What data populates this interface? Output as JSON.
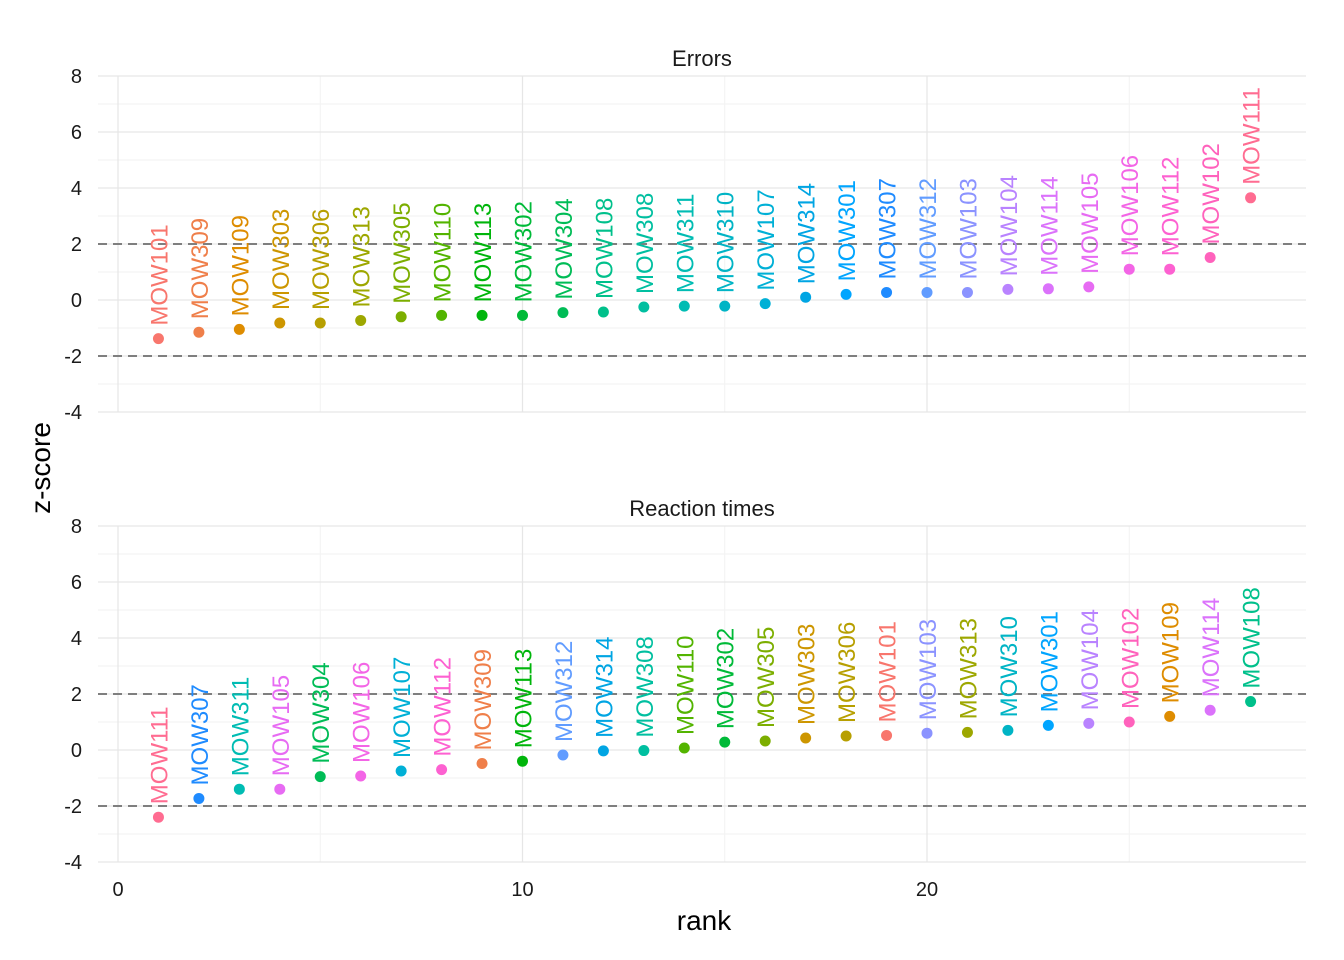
{
  "chart_data": {
    "type": "scatter",
    "xlabel": "rank",
    "ylabel": "z-score",
    "xlim": [
      0,
      29
    ],
    "ylim": [
      -4,
      8
    ],
    "x_ticks": [
      "0",
      "10",
      "20"
    ],
    "x_tick_values": [
      0,
      10,
      20
    ],
    "y_ticks": [
      "-4",
      "-2",
      "0",
      "2",
      "4",
      "6",
      "8"
    ],
    "y_tick_values": [
      -4,
      -2,
      0,
      2,
      4,
      6,
      8
    ],
    "reference_lines": [
      -2,
      2
    ],
    "grid": true,
    "colors": {
      "MOW101": "#F8766D",
      "MOW309": "#EF7F4A",
      "MOW109": "#DE8C00",
      "MOW303": "#CD9600",
      "MOW306": "#B79F00",
      "MOW313": "#9DA700",
      "MOW305": "#7CAE00",
      "MOW110": "#53B400",
      "MOW113": "#00B50B",
      "MOW302": "#00BA38",
      "MOW304": "#00BC56",
      "MOW108": "#00C08B",
      "MOW308": "#00BFA0",
      "MOW311": "#00BCB3",
      "MOW310": "#00B4C5",
      "MOW107": "#00B0D6",
      "MOW314": "#00A5E3",
      "MOW301": "#00A5FF",
      "MOW307": "#1F8BFF",
      "MOW312": "#619CFF",
      "MOW103": "#8B93FF",
      "MOW104": "#B983FF",
      "MOW114": "#DB72FB",
      "MOW105": "#E76BF3",
      "MOW106": "#F365E6",
      "MOW112": "#FD61D1",
      "MOW102": "#FF62BC",
      "MOW111": "#FF6C91"
    },
    "panels": [
      {
        "title": "Errors",
        "points": [
          {
            "rank": 1,
            "label": "MOW101",
            "z": -1.38
          },
          {
            "rank": 2,
            "label": "MOW309",
            "z": -1.15
          },
          {
            "rank": 3,
            "label": "MOW109",
            "z": -1.05
          },
          {
            "rank": 4,
            "label": "MOW303",
            "z": -0.82
          },
          {
            "rank": 5,
            "label": "MOW306",
            "z": -0.82
          },
          {
            "rank": 6,
            "label": "MOW313",
            "z": -0.73
          },
          {
            "rank": 7,
            "label": "MOW305",
            "z": -0.6
          },
          {
            "rank": 8,
            "label": "MOW110",
            "z": -0.55
          },
          {
            "rank": 9,
            "label": "MOW113",
            "z": -0.55
          },
          {
            "rank": 10,
            "label": "MOW302",
            "z": -0.55
          },
          {
            "rank": 11,
            "label": "MOW304",
            "z": -0.45
          },
          {
            "rank": 12,
            "label": "MOW108",
            "z": -0.43
          },
          {
            "rank": 13,
            "label": "MOW308",
            "z": -0.25
          },
          {
            "rank": 14,
            "label": "MOW311",
            "z": -0.22
          },
          {
            "rank": 15,
            "label": "MOW310",
            "z": -0.22
          },
          {
            "rank": 16,
            "label": "MOW107",
            "z": -0.13
          },
          {
            "rank": 17,
            "label": "MOW314",
            "z": 0.1
          },
          {
            "rank": 18,
            "label": "MOW301",
            "z": 0.2
          },
          {
            "rank": 19,
            "label": "MOW307",
            "z": 0.27
          },
          {
            "rank": 20,
            "label": "MOW312",
            "z": 0.27
          },
          {
            "rank": 21,
            "label": "MOW103",
            "z": 0.27
          },
          {
            "rank": 22,
            "label": "MOW104",
            "z": 0.38
          },
          {
            "rank": 23,
            "label": "MOW114",
            "z": 0.4
          },
          {
            "rank": 24,
            "label": "MOW105",
            "z": 0.47
          },
          {
            "rank": 25,
            "label": "MOW106",
            "z": 1.1
          },
          {
            "rank": 26,
            "label": "MOW112",
            "z": 1.1
          },
          {
            "rank": 27,
            "label": "MOW102",
            "z": 1.52
          },
          {
            "rank": 28,
            "label": "MOW111",
            "z": 3.65
          }
        ]
      },
      {
        "title": "Reaction times",
        "points": [
          {
            "rank": 1,
            "label": "MOW111",
            "z": -2.4
          },
          {
            "rank": 2,
            "label": "MOW307",
            "z": -1.73
          },
          {
            "rank": 3,
            "label": "MOW311",
            "z": -1.4
          },
          {
            "rank": 4,
            "label": "MOW105",
            "z": -1.4
          },
          {
            "rank": 5,
            "label": "MOW304",
            "z": -0.95
          },
          {
            "rank": 6,
            "label": "MOW106",
            "z": -0.93
          },
          {
            "rank": 7,
            "label": "MOW107",
            "z": -0.75
          },
          {
            "rank": 8,
            "label": "MOW112",
            "z": -0.7
          },
          {
            "rank": 9,
            "label": "MOW309",
            "z": -0.48
          },
          {
            "rank": 10,
            "label": "MOW113",
            "z": -0.4
          },
          {
            "rank": 11,
            "label": "MOW312",
            "z": -0.18
          },
          {
            "rank": 12,
            "label": "MOW314",
            "z": -0.03
          },
          {
            "rank": 13,
            "label": "MOW308",
            "z": -0.02
          },
          {
            "rank": 14,
            "label": "MOW110",
            "z": 0.07
          },
          {
            "rank": 15,
            "label": "MOW302",
            "z": 0.28
          },
          {
            "rank": 16,
            "label": "MOW305",
            "z": 0.32
          },
          {
            "rank": 17,
            "label": "MOW303",
            "z": 0.43
          },
          {
            "rank": 18,
            "label": "MOW306",
            "z": 0.5
          },
          {
            "rank": 19,
            "label": "MOW101",
            "z": 0.52
          },
          {
            "rank": 20,
            "label": "MOW103",
            "z": 0.6
          },
          {
            "rank": 21,
            "label": "MOW313",
            "z": 0.63
          },
          {
            "rank": 22,
            "label": "MOW310",
            "z": 0.7
          },
          {
            "rank": 23,
            "label": "MOW301",
            "z": 0.88
          },
          {
            "rank": 24,
            "label": "MOW104",
            "z": 0.95
          },
          {
            "rank": 25,
            "label": "MOW102",
            "z": 1.0
          },
          {
            "rank": 26,
            "label": "MOW109",
            "z": 1.2
          },
          {
            "rank": 27,
            "label": "MOW114",
            "z": 1.42
          },
          {
            "rank": 28,
            "label": "MOW108",
            "z": 1.73
          }
        ]
      }
    ]
  }
}
